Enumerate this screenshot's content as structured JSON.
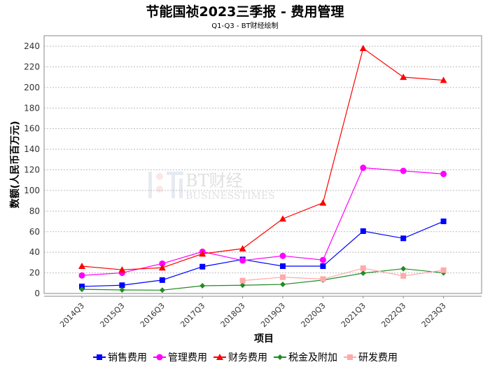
{
  "chart_data": {
    "type": "line",
    "title": "节能国祯2023三季报 - 费用管理",
    "subtitle": "Q1-Q3 - BT财经绘制",
    "xlabel": "项目",
    "ylabel": "数额(人民币百万元)",
    "categories": [
      "2014Q3",
      "2015Q3",
      "2016Q3",
      "2017Q3",
      "2018Q3",
      "2019Q3",
      "2020Q3",
      "2021Q3",
      "2022Q3",
      "2023Q3"
    ],
    "ylim": [
      0,
      250
    ],
    "yticks": [
      0,
      20,
      40,
      60,
      80,
      100,
      120,
      140,
      160,
      180,
      200,
      220,
      240
    ],
    "grid": true,
    "legend": "bottom",
    "series": [
      {
        "name": "销售费用",
        "color": "#0000ff",
        "marker": "square",
        "values": [
          6.8,
          8,
          13,
          26,
          33,
          26.5,
          26.5,
          60.5,
          53.5,
          70
        ]
      },
      {
        "name": "管理费用",
        "color": "#ff00ff",
        "marker": "circle",
        "values": [
          17.5,
          20,
          29,
          40.5,
          32,
          36.5,
          32.5,
          122,
          119,
          116
        ]
      },
      {
        "name": "财务费用",
        "color": "#ff0000",
        "marker": "triangle",
        "values": [
          26.5,
          23,
          25,
          38.5,
          43.5,
          72.5,
          88,
          238,
          210,
          207
        ]
      },
      {
        "name": "税金及附加",
        "color": "#228b22",
        "marker": "diamond",
        "values": [
          4,
          3.4,
          3.2,
          7.5,
          8,
          8.8,
          13,
          19.7,
          24,
          20
        ]
      },
      {
        "name": "研发费用",
        "color": "#ffaaaa",
        "marker": "square",
        "values": [
          null,
          null,
          null,
          null,
          12.5,
          15.8,
          14,
          24.5,
          17,
          22.6
        ]
      }
    ]
  },
  "watermark": "BT财经 BUSINESSTIMES"
}
